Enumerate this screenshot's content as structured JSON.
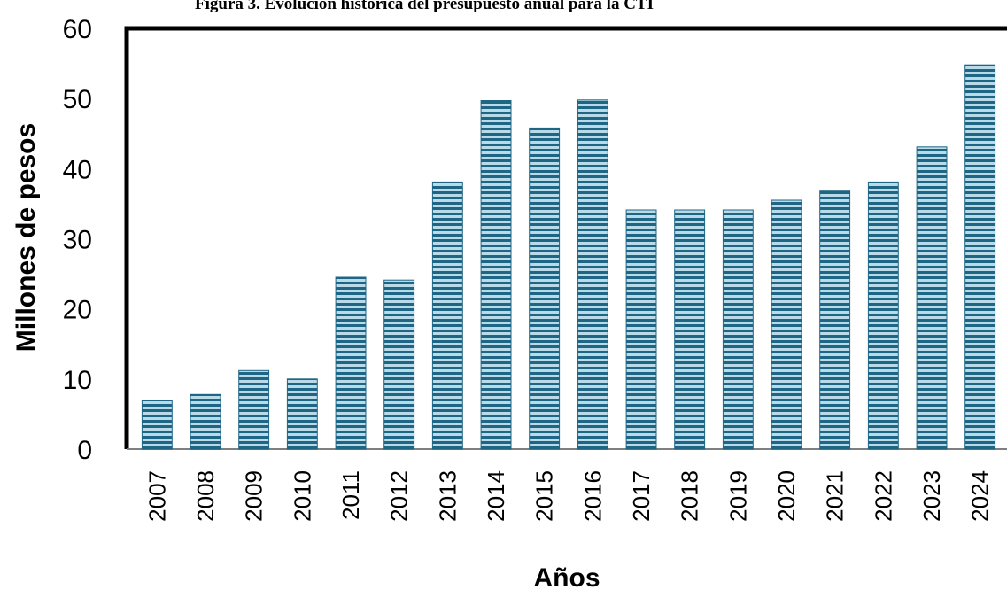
{
  "chart_data": {
    "type": "bar",
    "title": "Figura 3. Evolución histórica del presupuesto anual para la CTI",
    "xlabel": "Años",
    "ylabel": "Millones de pesos",
    "ylim": [
      0,
      60
    ],
    "yticks": [
      "0",
      "10",
      "20",
      "30",
      "40",
      "50",
      "60"
    ],
    "grid": false,
    "legend": "none",
    "categories": [
      "2007",
      "2008",
      "2009",
      "2010",
      "2011",
      "2012",
      "2013",
      "2014",
      "2015",
      "2016",
      "2017",
      "2018",
      "2019",
      "2020",
      "2021",
      "2022",
      "2023",
      "2024"
    ],
    "series": [
      {
        "values": [
          7,
          7.8,
          11.2,
          10,
          24.5,
          24.1,
          38.1,
          49.7,
          45.8,
          49.8,
          34.1,
          34.1,
          34.1,
          35.5,
          36.8,
          38.1,
          43.1,
          54.8
        ]
      }
    ],
    "colors": {
      "bar_dark": "#1f6685",
      "bar_light": "#b9dbe9",
      "frame": "#000000"
    }
  }
}
